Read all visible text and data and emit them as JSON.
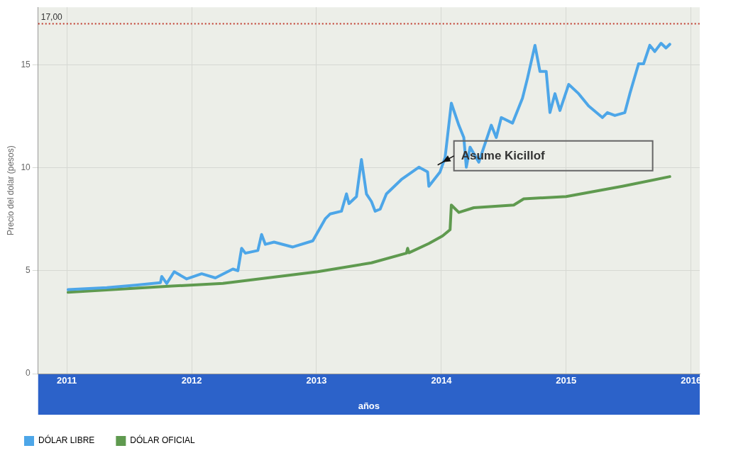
{
  "chart_data": {
    "type": "line",
    "xlabel": "años",
    "ylabel": "Precio del dolar (pesos)",
    "xlim": [
      2010.77,
      2016.07
    ],
    "xticks": [
      2011,
      2012,
      2013,
      2014,
      2015,
      2016
    ],
    "ylim": [
      0,
      17.8
    ],
    "yticks": [
      0,
      5,
      10,
      15
    ],
    "grid": true,
    "legend": "bottom left",
    "marker": "none",
    "line_style": "solid",
    "ref_lines": [
      {
        "axis": "y",
        "value": 17,
        "label": "17,00",
        "color": "#c0392b",
        "line_style": "dotted"
      }
    ],
    "annotations": [
      {
        "text": "Asume Kicillof",
        "x": 2014.01,
        "y": 10.27
      }
    ],
    "series": [
      {
        "name": "DÓLAR LIBRE",
        "color": "#4da6e8",
        "x": [
          2011.01,
          2011.32,
          2011.55,
          2011.75,
          2011.76,
          2011.8,
          2011.86,
          2011.96,
          2012.08,
          2012.19,
          2012.33,
          2012.37,
          2012.4,
          2012.43,
          2012.53,
          2012.56,
          2012.59,
          2012.66,
          2012.81,
          2012.97,
          2013.07,
          2013.11,
          2013.2,
          2013.24,
          2013.26,
          2013.32,
          2013.36,
          2013.4,
          2013.44,
          2013.47,
          2013.51,
          2013.56,
          2013.68,
          2013.82,
          2013.89,
          2013.9,
          2013.99,
          2014.03,
          2014.08,
          2014.14,
          2014.18,
          2014.2,
          2014.23,
          2014.3,
          2014.4,
          2014.44,
          2014.48,
          2014.57,
          2014.65,
          2014.69,
          2014.75,
          2014.79,
          2014.84,
          2014.87,
          2014.91,
          2014.95,
          2015.02,
          2015.1,
          2015.18,
          2015.29,
          2015.33,
          2015.39,
          2015.47,
          2015.51,
          2015.58,
          2015.62,
          2015.67,
          2015.71,
          2015.76,
          2015.8,
          2015.83
        ],
        "values": [
          4.08,
          4.18,
          4.3,
          4.42,
          4.72,
          4.38,
          4.95,
          4.6,
          4.85,
          4.65,
          5.08,
          5.0,
          6.09,
          5.85,
          5.98,
          6.76,
          6.28,
          6.39,
          6.15,
          6.45,
          7.52,
          7.76,
          7.89,
          8.73,
          8.26,
          8.6,
          10.4,
          8.73,
          8.36,
          7.89,
          7.99,
          8.73,
          9.43,
          10.03,
          9.8,
          9.1,
          9.8,
          10.5,
          13.14,
          12.07,
          11.47,
          10.03,
          11.0,
          10.27,
          12.07,
          11.47,
          12.44,
          12.17,
          13.38,
          14.35,
          15.95,
          14.68,
          14.68,
          12.68,
          13.6,
          12.78,
          14.05,
          13.6,
          13.0,
          12.44,
          12.68,
          12.54,
          12.68,
          13.6,
          15.05,
          15.05,
          15.95,
          15.65,
          16.05,
          15.82,
          16.0
        ]
      },
      {
        "name": "DÓLAR OFICIAL",
        "color": "#5f9a4f",
        "x": [
          2011.01,
          2011.84,
          2012.25,
          2013.01,
          2013.44,
          2013.72,
          2013.73,
          2013.74,
          2013.9,
          2014.01,
          2014.07,
          2014.08,
          2014.14,
          2014.26,
          2014.58,
          2014.66,
          2015.0,
          2015.45,
          2015.83
        ],
        "values": [
          3.95,
          4.25,
          4.38,
          4.95,
          5.38,
          5.85,
          6.09,
          5.87,
          6.32,
          6.69,
          6.99,
          8.19,
          7.83,
          8.06,
          8.19,
          8.49,
          8.6,
          9.1,
          9.57
        ]
      }
    ]
  }
}
